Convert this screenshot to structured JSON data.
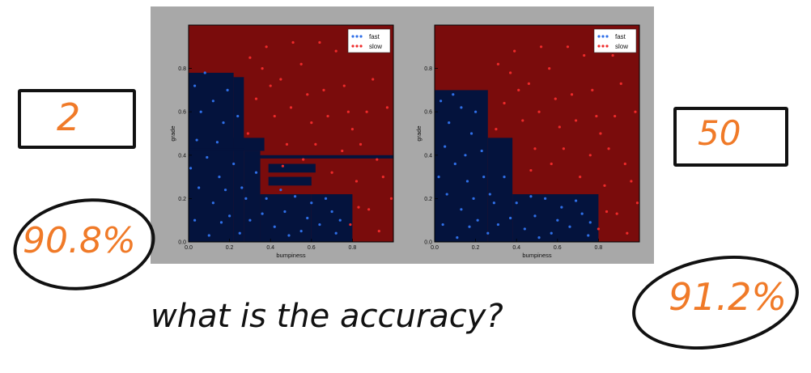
{
  "colors": {
    "slow_region": "#7a0c0c",
    "fast_region": "#04133d",
    "fast_points": "#2f6fe8",
    "slow_points": "#ef2a2a",
    "annotation": "#f07a28",
    "ink": "#111111"
  },
  "annotations": {
    "left_param": "2",
    "right_param": "50",
    "left_accuracy": "90.8%",
    "right_accuracy": "91.2%",
    "question": "what is the accuracy?"
  },
  "chart_data": [
    {
      "type": "scatter",
      "xlabel": "bumpiness",
      "ylabel": "grade",
      "xlim": [
        0,
        1
      ],
      "ylim": [
        0,
        1
      ],
      "xticks": [
        "0.0",
        "0.2",
        "0.4",
        "0.6",
        "0.8"
      ],
      "yticks": [
        "0.0",
        "0.2",
        "0.4",
        "0.6",
        "0.8"
      ],
      "legend": [
        "fast",
        "slow"
      ],
      "legend_position": "top-right",
      "background_class": "slow",
      "fast_region_rects": [
        [
          0.0,
          0.22,
          0.0,
          0.78
        ],
        [
          0.22,
          0.27,
          0.0,
          0.76
        ],
        [
          0.27,
          0.35,
          0.0,
          0.42
        ],
        [
          0.35,
          0.6,
          0.0,
          0.22
        ],
        [
          0.6,
          0.8,
          0.0,
          0.22
        ],
        [
          0.39,
          0.6,
          0.26,
          0.3
        ],
        [
          0.39,
          0.62,
          0.32,
          0.36
        ],
        [
          0.22,
          0.37,
          0.42,
          0.48
        ],
        [
          0.35,
          1.0,
          0.385,
          0.4
        ],
        [
          0.0,
          0.27,
          0.42,
          0.43
        ]
      ],
      "fast_points": [
        [
          0.03,
          0.72
        ],
        [
          0.06,
          0.6
        ],
        [
          0.12,
          0.65
        ],
        [
          0.04,
          0.47
        ],
        [
          0.17,
          0.55
        ],
        [
          0.09,
          0.39
        ],
        [
          0.15,
          0.3
        ],
        [
          0.05,
          0.25
        ],
        [
          0.12,
          0.18
        ],
        [
          0.2,
          0.12
        ],
        [
          0.03,
          0.1
        ],
        [
          0.25,
          0.04
        ],
        [
          0.28,
          0.2
        ],
        [
          0.33,
          0.32
        ],
        [
          0.3,
          0.1
        ],
        [
          0.38,
          0.2
        ],
        [
          0.42,
          0.07
        ],
        [
          0.47,
          0.14
        ],
        [
          0.52,
          0.21
        ],
        [
          0.55,
          0.05
        ],
        [
          0.6,
          0.18
        ],
        [
          0.64,
          0.08
        ],
        [
          0.7,
          0.14
        ],
        [
          0.72,
          0.04
        ],
        [
          0.08,
          0.78
        ],
        [
          0.19,
          0.7
        ],
        [
          0.24,
          0.58
        ],
        [
          0.14,
          0.46
        ],
        [
          0.22,
          0.36
        ],
        [
          0.26,
          0.25
        ],
        [
          0.36,
          0.13
        ],
        [
          0.45,
          0.24
        ],
        [
          0.58,
          0.11
        ],
        [
          0.67,
          0.2
        ],
        [
          0.74,
          0.1
        ],
        [
          0.1,
          0.03
        ],
        [
          0.16,
          0.09
        ],
        [
          0.01,
          0.34
        ],
        [
          0.18,
          0.24
        ],
        [
          0.49,
          0.03
        ]
      ],
      "slow_points": [
        [
          0.3,
          0.85
        ],
        [
          0.38,
          0.9
        ],
        [
          0.45,
          0.75
        ],
        [
          0.5,
          0.62
        ],
        [
          0.55,
          0.82
        ],
        [
          0.6,
          0.55
        ],
        [
          0.66,
          0.7
        ],
        [
          0.72,
          0.88
        ],
        [
          0.78,
          0.6
        ],
        [
          0.84,
          0.45
        ],
        [
          0.9,
          0.75
        ],
        [
          0.95,
          0.3
        ],
        [
          0.88,
          0.15
        ],
        [
          0.93,
          0.05
        ],
        [
          0.82,
          0.28
        ],
        [
          0.75,
          0.42
        ],
        [
          0.62,
          0.45
        ],
        [
          0.56,
          0.38
        ],
        [
          0.7,
          0.32
        ],
        [
          0.8,
          0.52
        ],
        [
          0.42,
          0.58
        ],
        [
          0.33,
          0.66
        ],
        [
          0.29,
          0.5
        ],
        [
          0.48,
          0.45
        ],
        [
          0.86,
          0.88
        ],
        [
          0.97,
          0.62
        ],
        [
          0.64,
          0.92
        ],
        [
          0.4,
          0.72
        ],
        [
          0.51,
          0.92
        ],
        [
          0.92,
          0.38
        ],
        [
          0.79,
          0.08
        ],
        [
          0.99,
          0.2
        ],
        [
          0.68,
          0.58
        ],
        [
          0.58,
          0.68
        ],
        [
          0.36,
          0.8
        ],
        [
          0.76,
          0.72
        ],
        [
          0.87,
          0.6
        ],
        [
          0.94,
          0.9
        ],
        [
          0.46,
          0.35
        ],
        [
          0.83,
          0.16
        ]
      ]
    },
    {
      "type": "scatter",
      "xlabel": "bumpiness",
      "ylabel": "grade",
      "xlim": [
        0,
        1
      ],
      "ylim": [
        0,
        1
      ],
      "xticks": [
        "0.0",
        "0.2",
        "0.4",
        "0.6",
        "0.8"
      ],
      "yticks": [
        "0.0",
        "0.2",
        "0.4",
        "0.6",
        "0.8"
      ],
      "legend": [
        "fast",
        "slow"
      ],
      "legend_position": "top-right",
      "background_class": "slow",
      "fast_region_rects": [
        [
          0.0,
          0.26,
          0.0,
          0.7
        ],
        [
          0.26,
          0.38,
          0.0,
          0.48
        ],
        [
          0.38,
          0.8,
          0.0,
          0.22
        ]
      ],
      "fast_points": [
        [
          0.03,
          0.65
        ],
        [
          0.07,
          0.55
        ],
        [
          0.13,
          0.62
        ],
        [
          0.05,
          0.44
        ],
        [
          0.18,
          0.5
        ],
        [
          0.1,
          0.36
        ],
        [
          0.16,
          0.28
        ],
        [
          0.06,
          0.22
        ],
        [
          0.13,
          0.15
        ],
        [
          0.21,
          0.1
        ],
        [
          0.04,
          0.08
        ],
        [
          0.26,
          0.04
        ],
        [
          0.29,
          0.18
        ],
        [
          0.34,
          0.3
        ],
        [
          0.31,
          0.08
        ],
        [
          0.4,
          0.18
        ],
        [
          0.44,
          0.06
        ],
        [
          0.49,
          0.12
        ],
        [
          0.54,
          0.2
        ],
        [
          0.57,
          0.04
        ],
        [
          0.62,
          0.16
        ],
        [
          0.66,
          0.07
        ],
        [
          0.72,
          0.13
        ],
        [
          0.75,
          0.03
        ],
        [
          0.09,
          0.68
        ],
        [
          0.2,
          0.6
        ],
        [
          0.23,
          0.42
        ],
        [
          0.15,
          0.4
        ],
        [
          0.24,
          0.3
        ],
        [
          0.27,
          0.22
        ],
        [
          0.37,
          0.11
        ],
        [
          0.47,
          0.21
        ],
        [
          0.6,
          0.1
        ],
        [
          0.69,
          0.19
        ],
        [
          0.76,
          0.09
        ],
        [
          0.11,
          0.02
        ],
        [
          0.17,
          0.07
        ],
        [
          0.02,
          0.3
        ],
        [
          0.19,
          0.2
        ],
        [
          0.51,
          0.02
        ]
      ],
      "slow_points": [
        [
          0.31,
          0.82
        ],
        [
          0.39,
          0.88
        ],
        [
          0.46,
          0.73
        ],
        [
          0.51,
          0.6
        ],
        [
          0.56,
          0.8
        ],
        [
          0.61,
          0.53
        ],
        [
          0.67,
          0.68
        ],
        [
          0.73,
          0.86
        ],
        [
          0.79,
          0.58
        ],
        [
          0.85,
          0.43
        ],
        [
          0.91,
          0.73
        ],
        [
          0.96,
          0.28
        ],
        [
          0.89,
          0.13
        ],
        [
          0.94,
          0.04
        ],
        [
          0.83,
          0.26
        ],
        [
          0.76,
          0.4
        ],
        [
          0.63,
          0.43
        ],
        [
          0.57,
          0.36
        ],
        [
          0.71,
          0.3
        ],
        [
          0.81,
          0.5
        ],
        [
          0.43,
          0.56
        ],
        [
          0.34,
          0.64
        ],
        [
          0.3,
          0.52
        ],
        [
          0.49,
          0.43
        ],
        [
          0.87,
          0.86
        ],
        [
          0.98,
          0.6
        ],
        [
          0.65,
          0.9
        ],
        [
          0.41,
          0.7
        ],
        [
          0.52,
          0.9
        ],
        [
          0.93,
          0.36
        ],
        [
          0.8,
          0.06
        ],
        [
          0.99,
          0.18
        ],
        [
          0.69,
          0.56
        ],
        [
          0.59,
          0.66
        ],
        [
          0.37,
          0.78
        ],
        [
          0.77,
          0.7
        ],
        [
          0.88,
          0.58
        ],
        [
          0.95,
          0.88
        ],
        [
          0.47,
          0.33
        ],
        [
          0.84,
          0.14
        ]
      ]
    }
  ]
}
